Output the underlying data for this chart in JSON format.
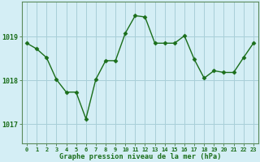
{
  "x": [
    0,
    1,
    2,
    3,
    4,
    5,
    6,
    7,
    8,
    9,
    10,
    11,
    12,
    13,
    14,
    15,
    16,
    17,
    18,
    19,
    20,
    21,
    22,
    23
  ],
  "y": [
    1018.85,
    1018.72,
    1018.52,
    1018.02,
    1017.73,
    1017.73,
    1017.12,
    1018.02,
    1018.45,
    1018.45,
    1019.08,
    1019.48,
    1019.45,
    1018.85,
    1018.85,
    1018.85,
    1019.02,
    1018.48,
    1018.05,
    1018.22,
    1018.18,
    1018.18,
    1018.52,
    1018.85
  ],
  "line_color": "#1a6e1a",
  "marker_color": "#1a6e1a",
  "bg_color": "#d4eef5",
  "grid_color": "#a8cfd8",
  "title": "Graphe pression niveau de la mer (hPa)",
  "title_color": "#1a6e1a",
  "xlabel_ticks": [
    "0",
    "1",
    "2",
    "3",
    "4",
    "5",
    "6",
    "7",
    "8",
    "9",
    "10",
    "11",
    "12",
    "13",
    "14",
    "15",
    "16",
    "17",
    "18",
    "19",
    "20",
    "21",
    "22",
    "23"
  ],
  "yticks": [
    1017,
    1018,
    1019
  ],
  "ylim": [
    1016.55,
    1019.8
  ],
  "xlim": [
    -0.5,
    23.5
  ]
}
